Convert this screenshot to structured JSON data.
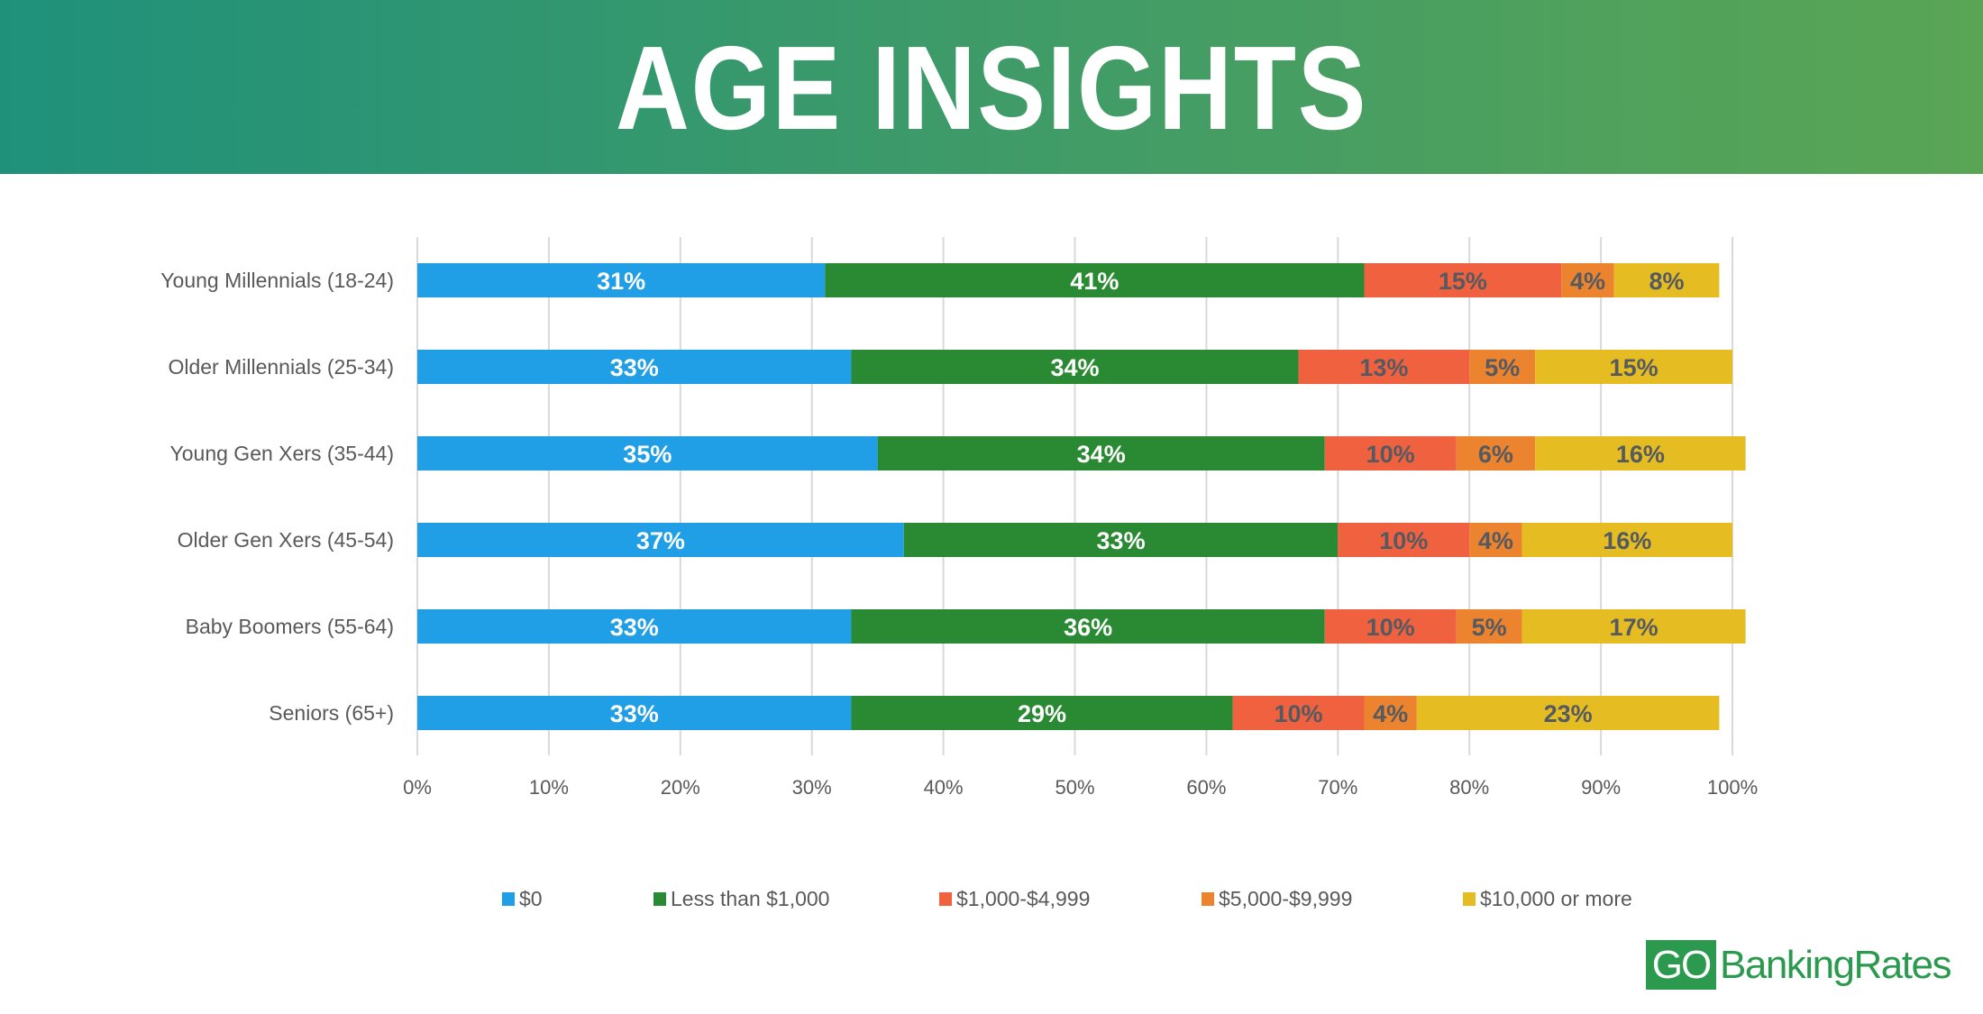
{
  "header": {
    "title": "AGE INSIGHTS"
  },
  "logo": {
    "go": "GO",
    "rest": "BankingRates"
  },
  "colors": {
    "header_start": "#1f917a",
    "header_end": "#5aa555"
  },
  "chart_data": {
    "type": "bar",
    "orientation": "horizontal",
    "stacked": true,
    "title": "AGE INSIGHTS",
    "xlabel": "",
    "ylabel": "",
    "xlim": [
      0,
      100
    ],
    "grid": true,
    "legend_position": "bottom",
    "categories": [
      "Young Millennials (18-24)",
      "Older Millennials (25-34)",
      "Young Gen Xers (35-44)",
      "Older Gen Xers (45-54)",
      "Baby Boomers (55-64)",
      "Seniors (65+)"
    ],
    "x_ticks": [
      "0%",
      "10%",
      "20%",
      "30%",
      "40%",
      "50%",
      "60%",
      "70%",
      "80%",
      "90%",
      "100%"
    ],
    "series": [
      {
        "name": "$0",
        "color": "#219fe6",
        "label_color": "#ffffff",
        "values": [
          31,
          33,
          35,
          37,
          33,
          33
        ],
        "labels": [
          "31%",
          "33%",
          "35%",
          "37%",
          "33%",
          "33%"
        ]
      },
      {
        "name": "Less than $1,000",
        "color": "#2a8a33",
        "label_color": "#ffffff",
        "values": [
          41,
          34,
          34,
          33,
          36,
          29
        ],
        "labels": [
          "41%",
          "34%",
          "34%",
          "33%",
          "36%",
          "29%"
        ]
      },
      {
        "name": "$1,000-$4,999",
        "color": "#ef613f",
        "label_color": "#555a60",
        "values": [
          15,
          13,
          10,
          10,
          10,
          10
        ],
        "labels": [
          "15%",
          "13%",
          "10%",
          "10%",
          "10%",
          "10%"
        ]
      },
      {
        "name": "$5,000-$9,999",
        "color": "#ec832e",
        "label_color": "#555a60",
        "values": [
          4,
          5,
          6,
          4,
          5,
          4
        ],
        "labels": [
          "4%",
          "5%",
          "6%",
          "4%",
          "5%",
          "4%"
        ]
      },
      {
        "name": "$10,000 or more",
        "color": "#e5bd22",
        "label_color": "#555a60",
        "values": [
          8,
          15,
          16,
          16,
          17,
          23
        ],
        "labels": [
          "8%",
          "15%",
          "16%",
          "16%",
          "17%",
          "23%"
        ]
      }
    ]
  }
}
